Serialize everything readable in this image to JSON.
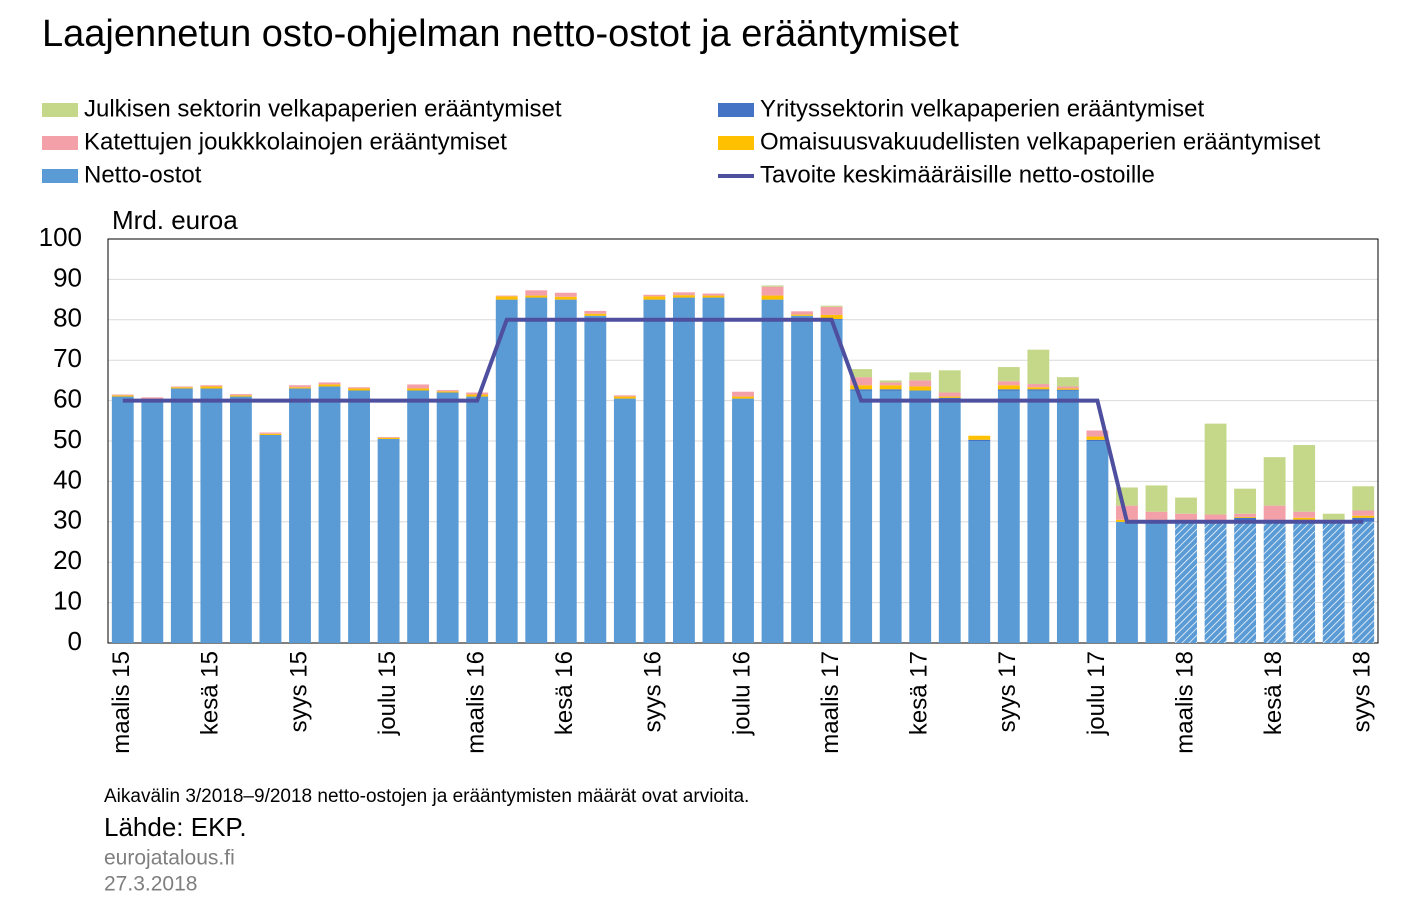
{
  "chart_data": {
    "type": "bar",
    "stacked": true,
    "title": "Laajennetun osto-ohjelman netto-ostot ja erääntymiset",
    "y_label": "Mrd. euroa",
    "note": "Aikavälin 3/2018–9/2018 netto-ostojen ja erääntymisten määrät ovat arvioita.",
    "source": "Lähde: EKP.",
    "site": "eurojatalous.fi",
    "date": "27.3.2018",
    "categories": [
      "maalis 15",
      null,
      null,
      "kesä 15",
      null,
      null,
      "syys 15",
      null,
      null,
      "joulu 15",
      null,
      null,
      "maalis 16",
      null,
      null,
      "kesä 16",
      null,
      null,
      "syys 16",
      null,
      null,
      "joulu 16",
      null,
      null,
      "maalis 17",
      null,
      null,
      "kesä 17",
      null,
      null,
      "syys 17",
      null,
      null,
      "joulu 17",
      null,
      null,
      "maalis 18",
      null,
      null,
      "kesä 18",
      null,
      null,
      "syys 18"
    ],
    "ylim": [
      0,
      100
    ],
    "yticks": [
      0,
      10,
      20,
      30,
      40,
      50,
      60,
      70,
      80,
      90,
      100
    ],
    "grid": true,
    "series": [
      {
        "name": "Netto-ostot",
        "color": "#5b9bd5",
        "values": [
          61,
          60,
          63,
          63,
          61,
          51.5,
          63,
          63.5,
          62.5,
          50.5,
          62.5,
          62,
          61,
          85,
          85.5,
          85,
          81,
          60.5,
          85,
          85.5,
          85.5,
          60.5,
          85,
          81,
          80,
          62.5,
          62.5,
          62.5,
          60.5,
          50,
          62.5,
          62.5,
          62.5,
          50,
          30,
          30,
          30,
          30,
          30,
          30,
          30,
          30,
          30
        ],
        "hatched": [
          false,
          false,
          false,
          false,
          false,
          false,
          false,
          false,
          false,
          false,
          false,
          false,
          false,
          false,
          false,
          false,
          false,
          false,
          false,
          false,
          false,
          false,
          false,
          false,
          false,
          false,
          false,
          false,
          false,
          false,
          false,
          false,
          false,
          false,
          false,
          false,
          true,
          true,
          true,
          true,
          true,
          true,
          true
        ]
      },
      {
        "name": "Yrityssektorin velkapaperien erääntymiset",
        "color": "#4472c4",
        "values": [
          0,
          0,
          0,
          0,
          0,
          0,
          0,
          0,
          0,
          0,
          0,
          0,
          0,
          0,
          0,
          0,
          0,
          0,
          0,
          0,
          0,
          0,
          0,
          0,
          0.2,
          0.3,
          0.3,
          0,
          0.2,
          0.3,
          0.3,
          0.3,
          0.2,
          0.3,
          0,
          0.3,
          0.3,
          0.3,
          1,
          0.5,
          0.5,
          0.2,
          1
        ]
      },
      {
        "name": "Omaisuusvakuudellisten velkapaperien erääntymiset",
        "color": "#ffc000",
        "values": [
          0.3,
          0.3,
          0.3,
          0.5,
          0.3,
          0.3,
          0.3,
          0.5,
          0.5,
          0.3,
          0.5,
          0.3,
          0.5,
          0.8,
          0.5,
          0.7,
          0.5,
          0.5,
          0.8,
          0.6,
          0.5,
          0.5,
          1,
          0.3,
          1,
          1,
          1,
          1,
          0.3,
          1,
          1,
          0.5,
          0.3,
          0.8,
          0.5,
          0.2,
          0.2,
          0,
          0.2,
          0,
          0.5,
          0,
          0.5
        ]
      },
      {
        "name": "Katettujen joukkkolainojen erääntymiset",
        "color": "#f4a0a8",
        "values": [
          0.2,
          0.5,
          0.2,
          0.3,
          0.3,
          0.3,
          0.5,
          0.5,
          0.3,
          0.2,
          1,
          0.3,
          0.5,
          0.2,
          1.3,
          1,
          0.7,
          0.3,
          0.4,
          0.7,
          0.5,
          1.2,
          2.2,
          0.8,
          2,
          2,
          0.7,
          1.5,
          1,
          0,
          1,
          0.8,
          0.5,
          1.5,
          3.5,
          2,
          1.5,
          1.5,
          0.8,
          3.5,
          1.5,
          0.3,
          1.3
        ]
      },
      {
        "name": "Julkisen sektorin velkapaperien erääntymiset",
        "color": "#c5d88a",
        "values": [
          0,
          0,
          0,
          0,
          0,
          0,
          0,
          0,
          0,
          0,
          0,
          0,
          0,
          0,
          0,
          0,
          0,
          0,
          0,
          0,
          0,
          0,
          0.3,
          0,
          0.3,
          2,
          0.5,
          2,
          5.5,
          0,
          3.5,
          8.5,
          2.3,
          0,
          4.5,
          6.5,
          4,
          22.5,
          6.2,
          12,
          16.5,
          1.5,
          6
        ]
      },
      {
        "name": "Tavoite keskimääräisille netto-ostoille",
        "type": "line",
        "color": "#4e4f9e",
        "values": [
          60,
          60,
          60,
          60,
          60,
          60,
          60,
          60,
          60,
          60,
          60,
          60,
          60,
          80,
          80,
          80,
          80,
          80,
          80,
          80,
          80,
          80,
          80,
          80,
          80,
          60,
          60,
          60,
          60,
          60,
          60,
          60,
          60,
          60,
          30,
          30,
          30,
          30,
          30,
          30,
          30,
          30,
          30
        ]
      }
    ]
  }
}
